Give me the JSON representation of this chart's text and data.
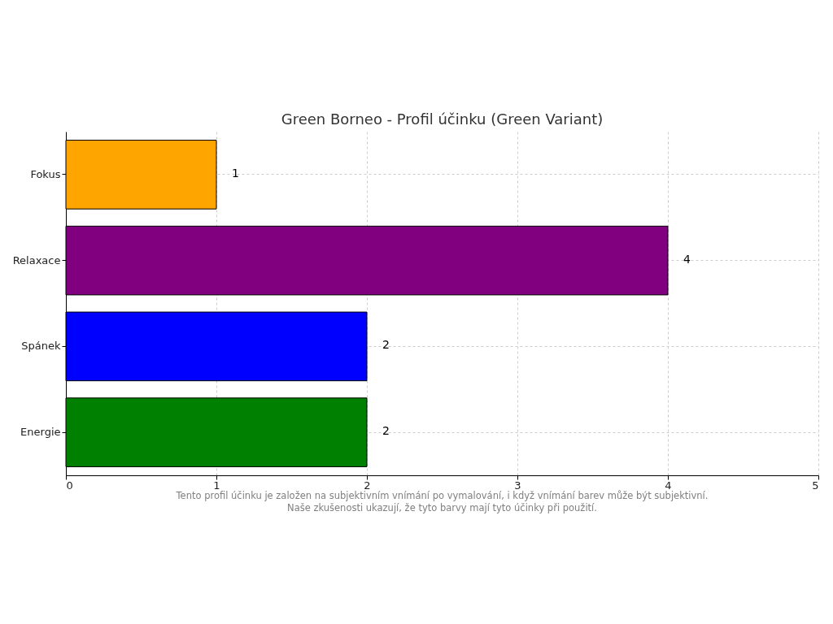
{
  "chart_data": {
    "type": "bar",
    "orientation": "horizontal",
    "title": "Green Borneo - Profil účinku (Green Variant)",
    "categories": [
      "Fokus",
      "Relaxace",
      "Spánek",
      "Energie"
    ],
    "values": [
      1,
      4,
      2,
      2
    ],
    "colors": [
      "#ffa500",
      "#800080",
      "#0000ff",
      "#008000"
    ],
    "xlim": [
      0,
      5
    ],
    "xticks": [
      0,
      1,
      2,
      3,
      4,
      5
    ],
    "grid": true,
    "data_labels": true,
    "annotations": [
      "Tento profil účinku je založen na subjektivním vnímání po vymalování, i když vnímání barev může být subjektivní.",
      "Naše zkušenosti ukazují, že tyto barvy mají tyto účinky při použití."
    ]
  }
}
